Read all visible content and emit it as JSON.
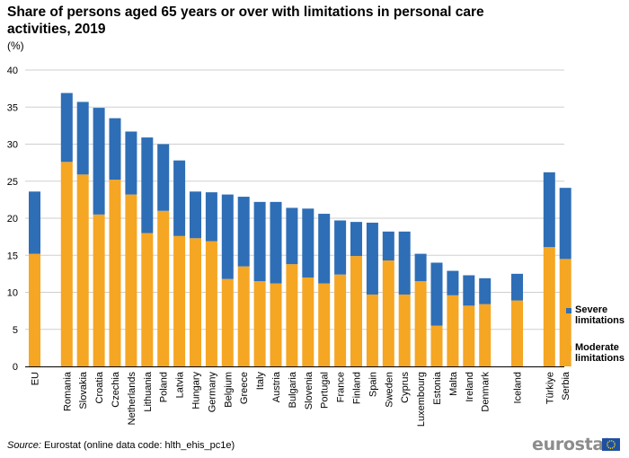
{
  "title": "Share of persons aged 65 years or over with limitations in personal care activities, 2019",
  "unit": "(%)",
  "source_label": "Source:",
  "source_text": "Eurostat (online data code: hlth_ehis_pc1e)",
  "logo_text": "eurostat",
  "colors": {
    "severe": "#2e6eb6",
    "moderate": "#f5a623",
    "grid": "#cfcfcf",
    "axis": "#000000"
  },
  "chart_data": {
    "type": "bar",
    "stacked": true,
    "title": "Share of persons aged 65 years or over with limitations in personal care activities, 2019",
    "ylabel": "(%)",
    "ylim": [
      0,
      40
    ],
    "yticks": [
      0,
      5,
      10,
      15,
      20,
      25,
      30,
      35,
      40
    ],
    "grid": true,
    "legend_position": "right",
    "categories": [
      "EU",
      "Romania",
      "Slovakia",
      "Croatia",
      "Czechia",
      "Netherlands",
      "Lithuania",
      "Poland",
      "Latvia",
      "Hungary",
      "Germany",
      "Belgium",
      "Greece",
      "Italy",
      "Austria",
      "Bulgaria",
      "Slovenia",
      "Portugal",
      "France",
      "Finland",
      "Spain",
      "Sweden",
      "Cyprus",
      "Luxembourg",
      "Estonia",
      "Malta",
      "Ireland",
      "Denmark",
      "Iceland",
      "Türkiye",
      "Serbia"
    ],
    "series": [
      {
        "name": "Moderate limitations",
        "color": "#f5a623",
        "values": [
          15.2,
          27.6,
          25.9,
          20.5,
          25.2,
          23.2,
          18.0,
          21.0,
          17.6,
          17.3,
          16.9,
          11.8,
          13.5,
          11.5,
          11.2,
          13.8,
          12.0,
          11.2,
          12.4,
          14.9,
          9.7,
          14.3,
          9.7,
          11.5,
          5.5,
          9.6,
          8.2,
          8.4,
          8.9,
          16.1,
          14.5
        ]
      },
      {
        "name": "Severe limitations",
        "color": "#2e6eb6",
        "values": [
          8.4,
          9.3,
          9.8,
          14.4,
          8.3,
          8.5,
          12.9,
          9.0,
          10.2,
          6.3,
          6.6,
          11.4,
          9.4,
          10.7,
          11.0,
          7.6,
          9.3,
          9.4,
          7.3,
          4.6,
          9.7,
          3.9,
          8.5,
          3.7,
          8.5,
          3.3,
          4.1,
          3.5,
          3.6,
          10.1,
          9.6
        ]
      }
    ]
  },
  "legend": [
    {
      "key": "severe",
      "label": "Severe limitations"
    },
    {
      "key": "moderate",
      "label": "Moderate limitations"
    }
  ]
}
